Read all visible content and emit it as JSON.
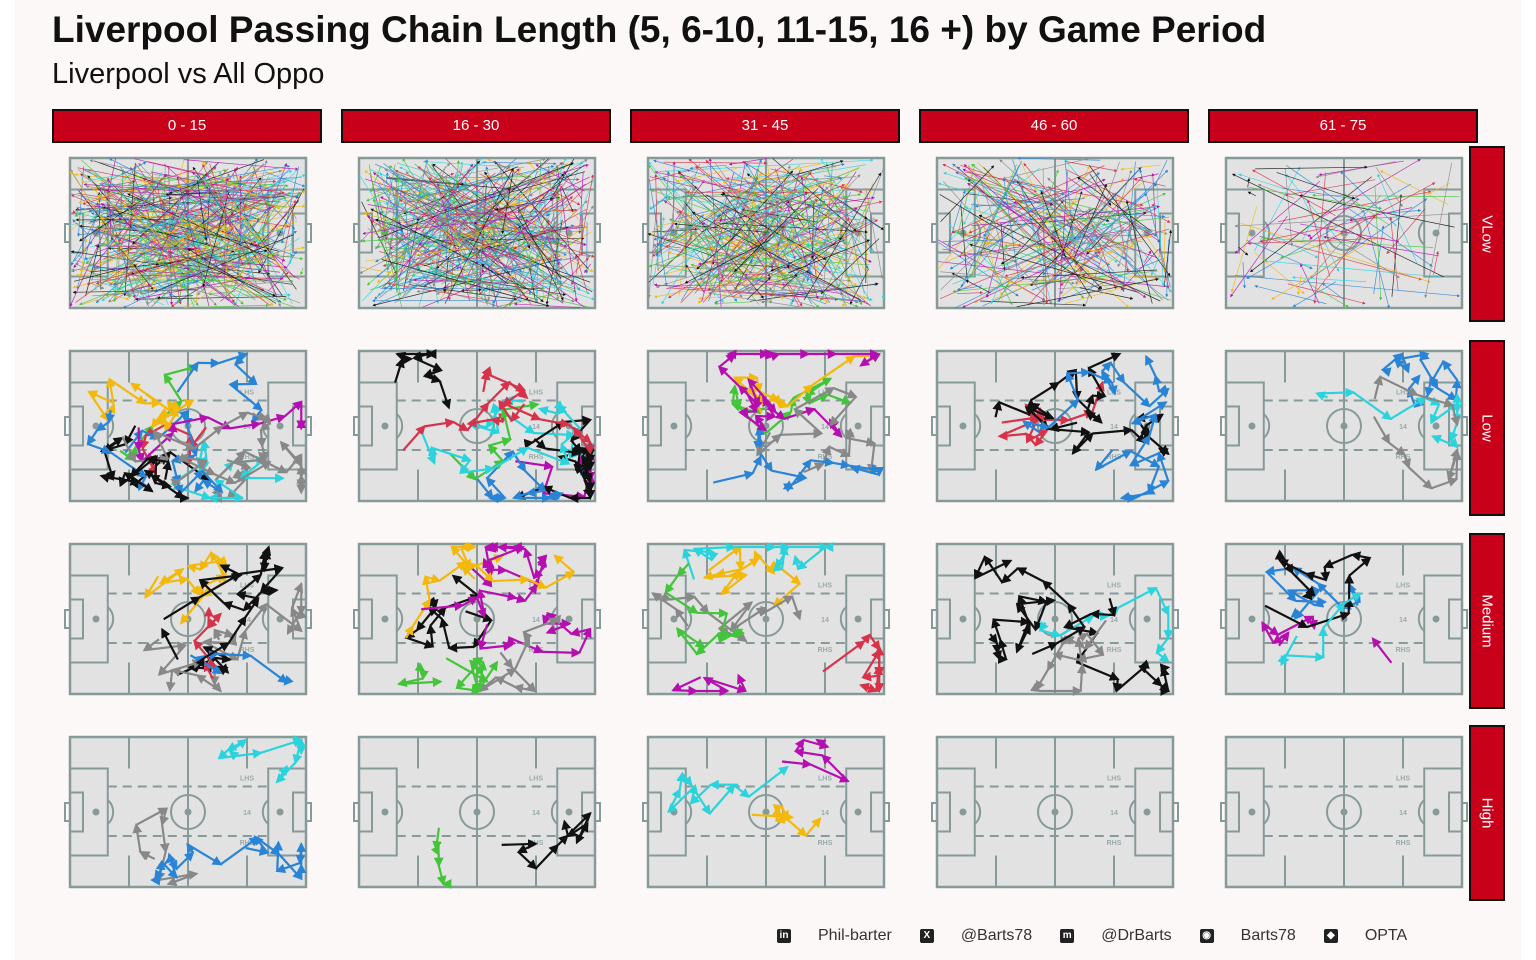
{
  "title": "Liverpool Passing Chain Length (5, 6-10, 11-15, 16 +) by Game Period",
  "subtitle": "Liverpool vs All Oppo",
  "columns": [
    "0 - 15",
    "16 - 30",
    "31 - 45",
    "46 - 60",
    "61 - 75"
  ],
  "rows": [
    "VLow",
    "Low",
    "Medium",
    "High"
  ],
  "pitch_labels": {
    "left_half": "LHS",
    "centre": "14",
    "right_half": "RHS"
  },
  "colors": {
    "strip": "#c8001a",
    "pitch_fill": "#e2e2e2",
    "pitch_lines": "#879a9a",
    "series_palette": [
      "#111111",
      "#d6334a",
      "#2a84d6",
      "#b50fb0",
      "#2bd3dc",
      "#f2b90c",
      "#43c43a",
      "#888888"
    ]
  },
  "footer": [
    {
      "icon": "linkedin-icon",
      "glyph": "in",
      "label": "Phil-barter"
    },
    {
      "icon": "x-icon",
      "glyph": "X",
      "label": "@Barts78"
    },
    {
      "icon": "mastodon-icon",
      "glyph": "m",
      "label": "@DrBarts"
    },
    {
      "icon": "github-icon",
      "glyph": "◉",
      "label": "Barts78"
    },
    {
      "icon": "dropbox-icon",
      "glyph": "◆",
      "label": "OPTA"
    }
  ],
  "chart_data": {
    "type": "scatter",
    "encoding": "faceted pass-chain arrow maps on a football pitch",
    "facet_columns": [
      "0 - 15",
      "16 - 30",
      "31 - 45",
      "46 - 60",
      "61 - 75"
    ],
    "facet_rows": [
      "VLow",
      "Low",
      "Medium",
      "High"
    ],
    "chain_lengths": [
      "5",
      "6-10",
      "11-15",
      "16 +"
    ],
    "xlim": [
      0,
      100
    ],
    "ylim": [
      0,
      100
    ],
    "approx_pass_counts": [
      [
        400,
        360,
        300,
        200,
        80
      ],
      [
        140,
        110,
        80,
        70,
        40
      ],
      [
        80,
        90,
        70,
        60,
        40
      ],
      [
        40,
        15,
        25,
        0,
        0
      ]
    ]
  }
}
